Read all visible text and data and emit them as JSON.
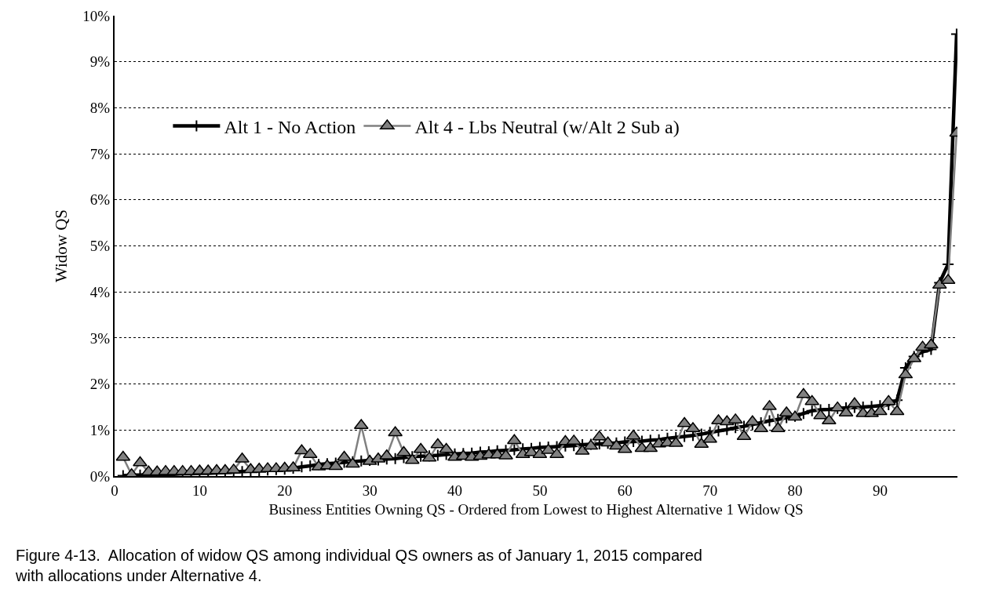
{
  "chart_data": {
    "type": "line",
    "xlabel": "Business Entities Owning QS - Ordered from Lowest to Highest Alternative 1 Widow QS",
    "ylabel": "Widow QS",
    "annotations": [
      "Figure 4-13.  Allocation of widow QS among individual QS owners as of January 1, 2015 compared with allocations under Alternative 4."
    ],
    "x": [
      1,
      2,
      3,
      4,
      5,
      6,
      7,
      8,
      9,
      10,
      11,
      12,
      13,
      14,
      15,
      16,
      17,
      18,
      19,
      20,
      21,
      22,
      23,
      24,
      25,
      26,
      27,
      28,
      29,
      30,
      31,
      32,
      33,
      34,
      35,
      36,
      37,
      38,
      39,
      40,
      41,
      42,
      43,
      44,
      45,
      46,
      47,
      48,
      49,
      50,
      51,
      52,
      53,
      54,
      55,
      56,
      57,
      58,
      59,
      60,
      61,
      62,
      63,
      64,
      65,
      66,
      67,
      68,
      69,
      70,
      71,
      72,
      73,
      74,
      75,
      76,
      77,
      78,
      79,
      80,
      81,
      82,
      83,
      84,
      85,
      86,
      87,
      88,
      89,
      90,
      91,
      92,
      93,
      94,
      95,
      96,
      97,
      98,
      99
    ],
    "series": [
      {
        "name": "Alt 1 - No Action",
        "color": "#000000",
        "marker": "cross",
        "values": [
          0.01,
          0.02,
          0.02,
          0.03,
          0.03,
          0.04,
          0.04,
          0.05,
          0.05,
          0.06,
          0.06,
          0.07,
          0.08,
          0.09,
          0.1,
          0.11,
          0.12,
          0.13,
          0.14,
          0.15,
          0.17,
          0.2,
          0.22,
          0.25,
          0.27,
          0.28,
          0.3,
          0.31,
          0.33,
          0.34,
          0.35,
          0.37,
          0.38,
          0.4,
          0.42,
          0.43,
          0.44,
          0.45,
          0.47,
          0.48,
          0.49,
          0.5,
          0.52,
          0.53,
          0.55,
          0.56,
          0.57,
          0.59,
          0.6,
          0.62,
          0.63,
          0.64,
          0.65,
          0.66,
          0.68,
          0.69,
          0.7,
          0.71,
          0.72,
          0.74,
          0.75,
          0.76,
          0.78,
          0.79,
          0.82,
          0.84,
          0.86,
          0.88,
          0.91,
          0.95,
          0.98,
          1.01,
          1.05,
          1.08,
          1.12,
          1.16,
          1.2,
          1.23,
          1.27,
          1.3,
          1.36,
          1.42,
          1.44,
          1.45,
          1.47,
          1.48,
          1.49,
          1.5,
          1.51,
          1.53,
          1.55,
          1.65,
          2.35,
          2.6,
          2.7,
          2.75,
          4.2,
          4.6,
          9.6
        ]
      },
      {
        "name": "Alt 4 - Lbs Neutral (w/Alt 2 Sub a)",
        "color": "#808080",
        "marker": "triangle",
        "values": [
          0.41,
          0.03,
          0.29,
          0.09,
          0.09,
          0.1,
          0.1,
          0.1,
          0.1,
          0.11,
          0.11,
          0.12,
          0.12,
          0.13,
          0.37,
          0.14,
          0.15,
          0.16,
          0.16,
          0.17,
          0.18,
          0.55,
          0.47,
          0.2,
          0.22,
          0.21,
          0.41,
          0.26,
          1.1,
          0.32,
          0.37,
          0.44,
          0.94,
          0.51,
          0.34,
          0.58,
          0.39,
          0.68,
          0.58,
          0.41,
          0.43,
          0.41,
          0.43,
          0.46,
          0.46,
          0.44,
          0.77,
          0.47,
          0.51,
          0.47,
          0.56,
          0.47,
          0.75,
          0.76,
          0.54,
          0.65,
          0.85,
          0.72,
          0.65,
          0.58,
          0.87,
          0.6,
          0.6,
          0.7,
          0.72,
          0.71,
          1.14,
          1.03,
          0.69,
          0.8,
          1.2,
          1.18,
          1.22,
          0.86,
          1.18,
          1.03,
          1.51,
          1.03,
          1.37,
          1.28,
          1.77,
          1.62,
          1.31,
          1.2,
          1.48,
          1.37,
          1.57,
          1.36,
          1.36,
          1.4,
          1.62,
          1.4,
          2.2,
          2.55,
          2.8,
          2.85,
          4.15,
          4.25,
          7.45
        ]
      }
    ],
    "xlim": [
      0,
      99.1
    ],
    "xticks": [
      0,
      10,
      20,
      30,
      40,
      50,
      60,
      70,
      80,
      90
    ],
    "ylim": [
      0,
      10
    ],
    "yticks": [
      {
        "value": 0,
        "label": "0%"
      },
      {
        "value": 1,
        "label": "1%"
      },
      {
        "value": 2,
        "label": "2%"
      },
      {
        "value": 3,
        "label": "3%"
      },
      {
        "value": 4,
        "label": "4%"
      },
      {
        "value": 5,
        "label": "5%"
      },
      {
        "value": 6,
        "label": "6%"
      },
      {
        "value": 7,
        "label": "7%"
      },
      {
        "value": 8,
        "label": "8%"
      },
      {
        "value": 9,
        "label": "9%"
      },
      {
        "value": 10,
        "label": "10%"
      }
    ],
    "grid": "y",
    "legend": "top",
    "line_style": "solid"
  }
}
